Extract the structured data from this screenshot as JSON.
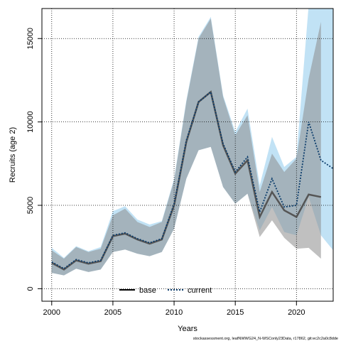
{
  "chart_data": {
    "type": "line",
    "xlabel": "Years",
    "ylabel": "Recruits (age 2)",
    "xlim": [
      1999.2,
      2023.0
    ],
    "ylim": [
      -750,
      16800
    ],
    "x_ticks": [
      2000,
      2005,
      2010,
      2015,
      2020
    ],
    "y_ticks": [
      0,
      5000,
      10000,
      15000
    ],
    "grid": true,
    "legend_position": "bottom-center",
    "series": [
      {
        "name": "base",
        "color": "#555555",
        "band_color": "#8c8c8c",
        "line_style": "solid",
        "x": [
          2000,
          2001,
          2002,
          2003,
          2004,
          2005,
          2006,
          2007,
          2008,
          2009,
          2010,
          2011,
          2012,
          2013,
          2014,
          2015,
          2016,
          2017,
          2018,
          2019,
          2020,
          2021,
          2022
        ],
        "y": [
          1550,
          1150,
          1700,
          1500,
          1650,
          3150,
          3300,
          2950,
          2700,
          2950,
          5000,
          8800,
          11200,
          11800,
          8600,
          6900,
          7700,
          4300,
          5800,
          4700,
          4300,
          5650,
          5500
        ],
        "lower": [
          950,
          800,
          1200,
          1000,
          1150,
          2200,
          2350,
          2100,
          1950,
          2200,
          3600,
          6600,
          8300,
          8500,
          6100,
          5100,
          5700,
          3100,
          4100,
          3050,
          2400,
          2450,
          1800
        ],
        "upper": [
          2300,
          1800,
          2500,
          2200,
          2400,
          4400,
          4800,
          4000,
          3700,
          4000,
          6500,
          11200,
          15000,
          16200,
          11500,
          9200,
          10400,
          5800,
          8100,
          7000,
          7800,
          12600,
          16000
        ]
      },
      {
        "name": "current",
        "color": "#0b3c6b",
        "band_color": "#9fd3ef",
        "line_style": "dotted",
        "x": [
          2000,
          2001,
          2002,
          2003,
          2004,
          2005,
          2006,
          2007,
          2008,
          2009,
          2010,
          2011,
          2012,
          2013,
          2014,
          2015,
          2016,
          2017,
          2018,
          2019,
          2020,
          2021,
          2022,
          2023
        ],
        "y": [
          1600,
          1200,
          1750,
          1550,
          1700,
          3200,
          3350,
          3000,
          2750,
          3000,
          5100,
          8900,
          11200,
          11800,
          8700,
          7000,
          7900,
          4600,
          6600,
          4900,
          5000,
          10000,
          7700,
          7200
        ],
        "lower": [
          950,
          800,
          1200,
          1000,
          1150,
          2200,
          2350,
          2100,
          1950,
          2200,
          3600,
          6600,
          8300,
          8500,
          6100,
          5100,
          5700,
          3500,
          4900,
          3400,
          3200,
          5500,
          3200,
          2300
        ],
        "upper": [
          2450,
          1850,
          2550,
          2250,
          2500,
          4650,
          4950,
          4150,
          3850,
          4050,
          6600,
          11300,
          15100,
          16300,
          11600,
          9400,
          10800,
          6200,
          9100,
          7300,
          7900,
          17000,
          17000,
          17000
        ]
      }
    ]
  },
  "footnote": "stockassessment.org, leafNWWG24_N-WSConly23Data, r17862, git:ec2c2a0c8dde"
}
